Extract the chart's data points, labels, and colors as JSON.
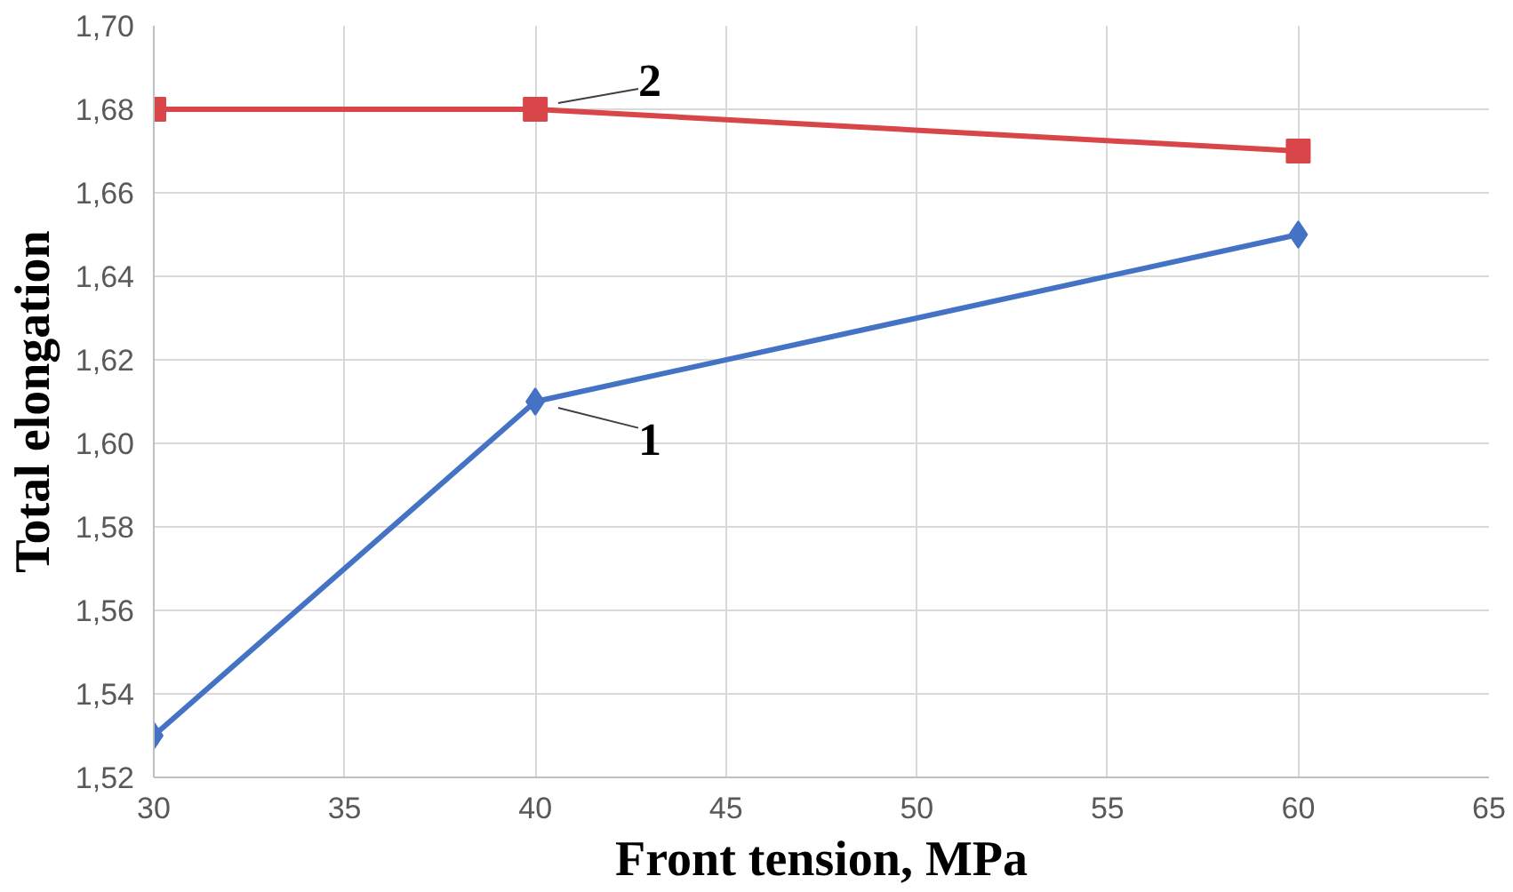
{
  "chart_data": {
    "type": "line",
    "xlabel": "Front tension, MPa",
    "ylabel": "Total elongation",
    "x": [
      30,
      40,
      60
    ],
    "series": [
      {
        "name": "1",
        "color": "#4472c4",
        "marker": "diamond",
        "values": [
          1.53,
          1.61,
          1.65
        ]
      },
      {
        "name": "2",
        "color": "#d9464a",
        "marker": "square",
        "values": [
          1.68,
          1.68,
          1.67
        ]
      }
    ],
    "xlim": [
      30,
      65
    ],
    "xticks": [
      30,
      35,
      40,
      45,
      50,
      55,
      60,
      65
    ],
    "ylim": [
      1.52,
      1.7
    ],
    "yticks": [
      {
        "value": 1.52,
        "label": "1,52"
      },
      {
        "value": 1.54,
        "label": "1,54"
      },
      {
        "value": 1.56,
        "label": "1,56"
      },
      {
        "value": 1.58,
        "label": "1,58"
      },
      {
        "value": 1.6,
        "label": "1,60"
      },
      {
        "value": 1.62,
        "label": "1,62"
      },
      {
        "value": 1.64,
        "label": "1,64"
      },
      {
        "value": 1.66,
        "label": "1,66"
      },
      {
        "value": 1.68,
        "label": "1,68"
      },
      {
        "value": 1.7,
        "label": "1,70"
      }
    ],
    "grid": true,
    "line_style": "solid"
  }
}
